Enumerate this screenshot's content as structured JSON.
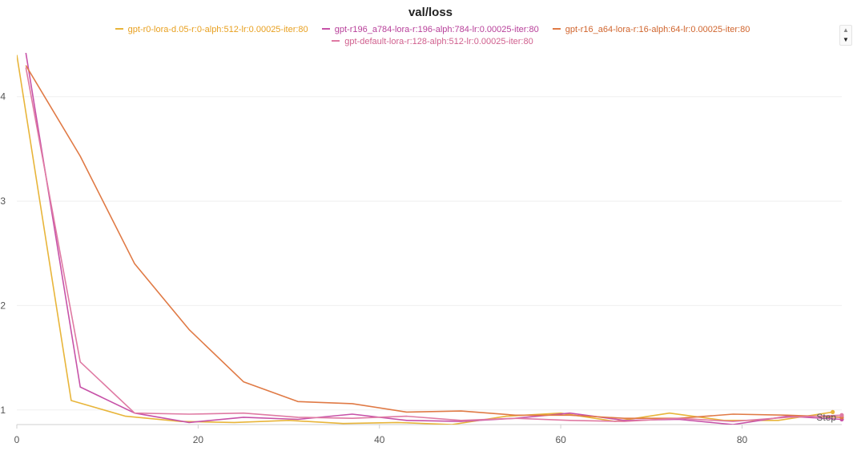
{
  "chart_data": {
    "type": "line",
    "title": "val/loss",
    "xlabel": "Step",
    "ylabel": "",
    "xlim": [
      0,
      91
    ],
    "ylim": [
      0.86,
      4.42
    ],
    "xticks": [
      0,
      20,
      40,
      60,
      80
    ],
    "yticks": [
      1,
      2,
      3,
      4
    ],
    "grid": true,
    "legend_position": "top-center",
    "series": [
      {
        "name": "gpt-r0-lora-d.05-r:0-alph:512-lr:0.00025-iter:80",
        "color": "#e8b53a",
        "x": [
          0,
          6,
          12,
          18,
          24,
          30,
          36,
          42,
          48,
          54,
          60,
          66,
          72,
          78,
          84,
          90
        ],
        "y": [
          4.4,
          1.09,
          0.94,
          0.89,
          0.88,
          0.9,
          0.87,
          0.88,
          0.86,
          0.94,
          0.97,
          0.89,
          0.97,
          0.9,
          0.9,
          0.98
        ]
      },
      {
        "name": "gpt-r196_a784-lora-r:196-alph:784-lr:0.00025-iter:80",
        "color": "#c752a8",
        "x": [
          1,
          7,
          13,
          19,
          25,
          31,
          37,
          43,
          49,
          55,
          61,
          67,
          73,
          79,
          85,
          91
        ],
        "y": [
          4.42,
          1.22,
          0.97,
          0.88,
          0.93,
          0.91,
          0.96,
          0.9,
          0.89,
          0.92,
          0.97,
          0.9,
          0.91,
          0.86,
          0.94,
          0.91
        ]
      },
      {
        "name": "gpt-r16_a64-lora-r:16-alph:64-lr:0.00025-iter:80",
        "color": "#e07a45",
        "x": [
          1,
          7,
          13,
          19,
          25,
          31,
          37,
          43,
          49,
          55,
          61,
          67,
          73,
          79,
          85,
          91
        ],
        "y": [
          4.3,
          3.43,
          2.4,
          1.77,
          1.27,
          1.08,
          1.06,
          0.98,
          0.99,
          0.95,
          0.95,
          0.92,
          0.92,
          0.96,
          0.95,
          0.93
        ]
      },
      {
        "name": "gpt-default-lora-r:128-alph:512-lr:0.00025-iter:80",
        "color": "#df7aa3",
        "x": [
          1,
          7,
          13,
          19,
          25,
          31,
          37,
          43,
          49,
          55,
          61,
          67,
          73,
          79,
          85,
          91
        ],
        "y": [
          4.28,
          1.46,
          0.97,
          0.96,
          0.97,
          0.93,
          0.92,
          0.94,
          0.9,
          0.92,
          0.9,
          0.89,
          0.92,
          0.89,
          0.93,
          0.95
        ]
      }
    ]
  }
}
